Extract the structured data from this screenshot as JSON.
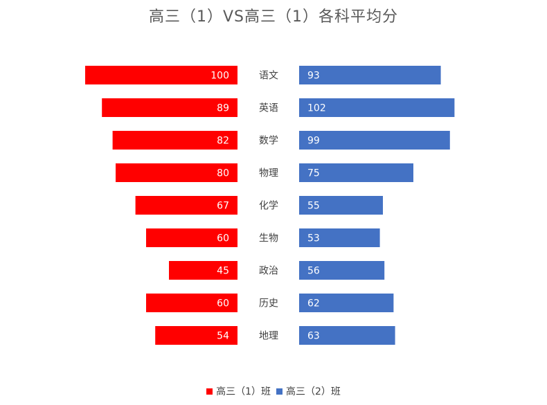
{
  "chart_data": {
    "type": "bar",
    "orientation": "horizontal-butterfly",
    "title": "高三（1）VS高三（1）各科平均分",
    "categories": [
      "语文",
      "英语",
      "数学",
      "物理",
      "化学",
      "生物",
      "政治",
      "历史",
      "地理"
    ],
    "series": [
      {
        "name": "高三（1）班",
        "color": "#ff0000",
        "side": "left",
        "values": [
          100,
          89,
          82,
          80,
          67,
          60,
          45,
          60,
          54
        ]
      },
      {
        "name": "高三（2）班",
        "color": "#4472c4",
        "side": "right",
        "values": [
          93,
          102,
          99,
          75,
          55,
          53,
          56,
          62,
          63
        ]
      }
    ],
    "xlim": [
      0,
      110
    ],
    "grid": false,
    "legend": "bottom",
    "data_labels": true
  }
}
